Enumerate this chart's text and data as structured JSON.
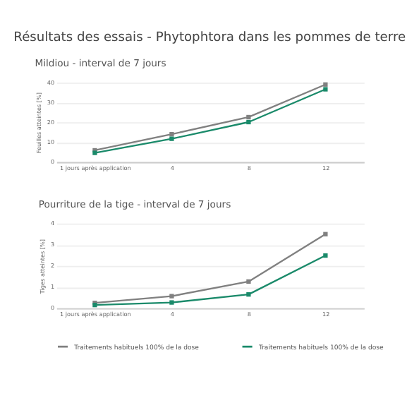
{
  "chart_data": [
    {
      "type": "line",
      "title": "Résultats des essais - Phytophtora dans les pommes de terre",
      "subtitle": "Mildiou - interval de 7 jours",
      "ylabel": "Feuilles atteintes [%]",
      "categories": [
        "1 jours après application",
        "4",
        "8",
        "12"
      ],
      "series": [
        {
          "color": "#808080",
          "values": [
            5.9,
            14.0,
            22.6,
            39.0
          ]
        },
        {
          "color": "#1a8a6a",
          "values": [
            4.6,
            11.7,
            20.1,
            36.6
          ]
        }
      ],
      "ylim": [
        0,
        40
      ],
      "yticks": [
        0,
        10,
        20,
        30,
        40
      ],
      "grid": "y",
      "legend": false,
      "marker": "square",
      "line_style": "solid"
    },
    {
      "type": "line",
      "title": "Pourriture de la tige - interval de 7 jours",
      "ylabel": "Tiges atteintes [%]",
      "categories": [
        "1 jours après application",
        "4",
        "8",
        "12"
      ],
      "series": [
        {
          "name": "Traitements habituels 100% de la dose",
          "color": "#808080",
          "values": [
            0.25,
            0.57,
            1.26,
            3.5
          ]
        },
        {
          "name": "Traitements habituels 100% de la dose",
          "color": "#1a8a6a",
          "values": [
            0.15,
            0.27,
            0.65,
            2.49
          ]
        }
      ],
      "ylim": [
        0,
        4
      ],
      "yticks": [
        0,
        1,
        2,
        3,
        4
      ],
      "grid": "y",
      "legend": "bottom",
      "marker": "square",
      "line_style": "solid"
    }
  ]
}
